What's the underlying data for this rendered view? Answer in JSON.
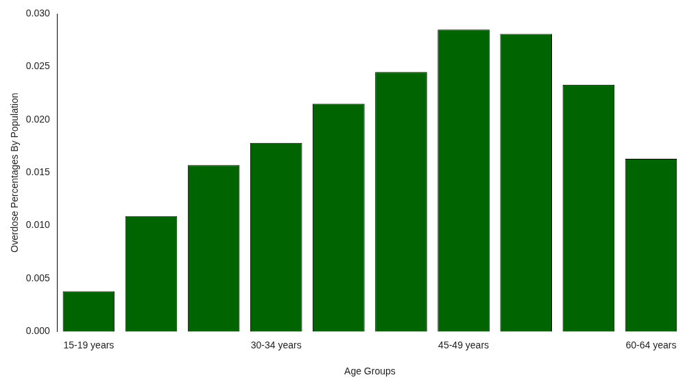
{
  "chart_data": {
    "type": "bar",
    "xlabel": "Age Groups",
    "ylabel": "Overdose Percentages By Population",
    "categories": [
      "15-19 years",
      null,
      null,
      "30-34 years",
      null,
      null,
      "45-49 years",
      null,
      null,
      "60-64 years"
    ],
    "values": [
      0.0038,
      0.0109,
      0.0157,
      0.0178,
      0.0215,
      0.0245,
      0.0285,
      0.0281,
      0.0233,
      0.0163
    ],
    "color": "#006400",
    "ylim": [
      0,
      0.03
    ],
    "yticks": [
      {
        "value": 0,
        "label": "0.000"
      },
      {
        "value": 0.005,
        "label": "0.005"
      },
      {
        "value": 0.01,
        "label": "0.010"
      },
      {
        "value": 0.015,
        "label": "0.015"
      },
      {
        "value": 0.02,
        "label": "0.020"
      },
      {
        "value": 0.025,
        "label": "0.025"
      },
      {
        "value": 0.03,
        "label": "0.030"
      }
    ],
    "grid": false,
    "legend": false
  }
}
